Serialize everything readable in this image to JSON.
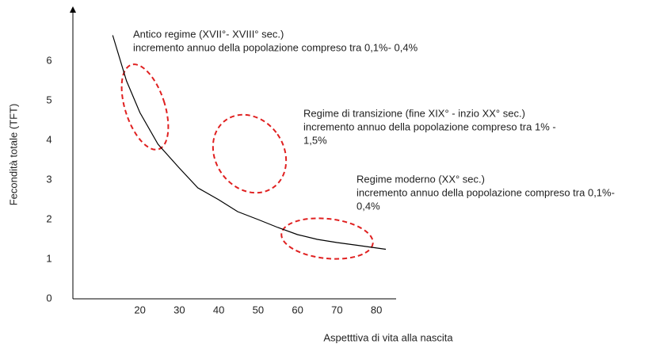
{
  "chart_data": {
    "type": "line",
    "x_label": "Aspetttiva di vita alla nascita",
    "y_label": "Fecondità totale (TFT)",
    "x": [
      13.1,
      16.6,
      20,
      24.6,
      30,
      34.7,
      40,
      44.8,
      50,
      55,
      60,
      65,
      70,
      75.2,
      82.4
    ],
    "series": [
      {
        "color": "#000000",
        "values": [
          6.65,
          5.5,
          4.7,
          3.9,
          3.3,
          2.8,
          2.5,
          2.2,
          2.0,
          1.8,
          1.62,
          1.5,
          1.42,
          1.35,
          1.25
        ]
      }
    ],
    "xlim": [
      3,
      85
    ],
    "ylim": [
      0,
      7.3
    ],
    "xticks": [
      20,
      30,
      40,
      50,
      60,
      70,
      80
    ],
    "yticks": [
      0,
      1,
      2,
      3,
      4,
      5,
      6
    ],
    "annotations": [
      [
        "Antico regime (XVII°- XVIII° sec.)",
        "incremento annuo della popolazione compreso tra  0,1%- 0,4%"
      ],
      [
        "Regime di transizione (fine XIX° - inzio XX° sec.)",
        "incremento annuo della popolazione compreso tra 1% -",
        "1,5%"
      ],
      [
        "Regime moderno (XX° sec.)",
        "incremento annuo della popolazione compreso tra  0,1%-",
        "0,4%"
      ]
    ]
  }
}
